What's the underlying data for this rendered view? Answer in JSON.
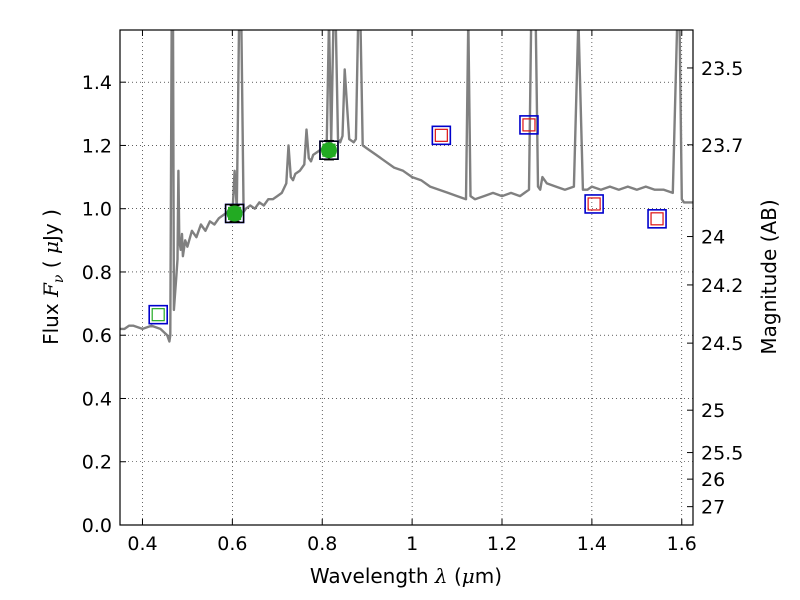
{
  "chart_data": {
    "type": "line",
    "xlabel_parts": {
      "pre": "Wavelength  ",
      "sym": "λ",
      "mid": " (",
      "mu": "μ",
      "post": "m)"
    },
    "ylabel_parts": {
      "pre": "Flux  ",
      "sym": "F",
      "sub": "ν",
      "mid": "  ( ",
      "mu": "μ",
      "post": "Jy )"
    },
    "y2label": "Magnitude (AB)",
    "xlim": [
      0.35,
      1.625
    ],
    "ylim": [
      0.0,
      1.565
    ],
    "x_ticks": [
      0.4,
      0.6,
      0.8,
      1.0,
      1.2,
      1.4,
      1.6
    ],
    "x_tick_labels": [
      "0.4",
      "0.6",
      "0.8",
      "1",
      "1.2",
      "1.4",
      "1.6"
    ],
    "y_ticks": [
      0.0,
      0.2,
      0.4,
      0.6,
      0.8,
      1.0,
      1.2,
      1.4
    ],
    "y_tick_labels": [
      "0.0",
      "0.2",
      "0.4",
      "0.6",
      "0.8",
      "1.0",
      "1.2",
      "1.4"
    ],
    "mag_ticks": [
      {
        "label": "23.5",
        "flux": 1.445
      },
      {
        "label": "23.7",
        "flux": 1.202
      },
      {
        "label": "24",
        "flux": 0.912
      },
      {
        "label": "24.2",
        "flux": 0.759
      },
      {
        "label": "24.5",
        "flux": 0.575
      },
      {
        "label": "25",
        "flux": 0.363
      },
      {
        "label": "25.5",
        "flux": 0.229
      },
      {
        "label": "26",
        "flux": 0.145
      },
      {
        "label": "27",
        "flux": 0.058
      }
    ],
    "grid": true,
    "colors": {
      "template": "#808080",
      "model_box": "#0000cc",
      "obs_box": "#000000",
      "optical_marker": "#22aa22",
      "ir_marker": "#dd1111",
      "errorbar": "#000000"
    },
    "template_spectrum": {
      "x": [
        0.35,
        0.36,
        0.37,
        0.38,
        0.4,
        0.42,
        0.44,
        0.455,
        0.46,
        0.462,
        0.465,
        0.468,
        0.47,
        0.472,
        0.475,
        0.478,
        0.48,
        0.482,
        0.485,
        0.488,
        0.49,
        0.495,
        0.5,
        0.51,
        0.52,
        0.53,
        0.54,
        0.55,
        0.56,
        0.57,
        0.58,
        0.59,
        0.6,
        0.605,
        0.61,
        0.615,
        0.62,
        0.625,
        0.63,
        0.64,
        0.65,
        0.66,
        0.67,
        0.68,
        0.69,
        0.7,
        0.71,
        0.72,
        0.725,
        0.73,
        0.735,
        0.74,
        0.75,
        0.76,
        0.765,
        0.77,
        0.775,
        0.78,
        0.79,
        0.8,
        0.81,
        0.815,
        0.82,
        0.825,
        0.83,
        0.835,
        0.84,
        0.845,
        0.85,
        0.86,
        0.87,
        0.875,
        0.88,
        0.885,
        0.89,
        0.9,
        0.92,
        0.94,
        0.96,
        0.98,
        1.0,
        1.02,
        1.04,
        1.06,
        1.08,
        1.1,
        1.12,
        1.125,
        1.13,
        1.14,
        1.16,
        1.18,
        1.2,
        1.22,
        1.24,
        1.25,
        1.26,
        1.265,
        1.27,
        1.275,
        1.28,
        1.285,
        1.29,
        1.3,
        1.32,
        1.34,
        1.36,
        1.37,
        1.38,
        1.39,
        1.4,
        1.42,
        1.44,
        1.46,
        1.48,
        1.5,
        1.52,
        1.54,
        1.56,
        1.58,
        1.59,
        1.595,
        1.6,
        1.605,
        1.61,
        1.625
      ],
      "y": [
        0.62,
        0.62,
        0.63,
        0.63,
        0.62,
        0.63,
        0.62,
        0.6,
        0.58,
        0.6,
        1.6,
        1.6,
        0.68,
        0.72,
        0.78,
        0.84,
        1.12,
        0.9,
        0.87,
        0.92,
        0.85,
        0.9,
        0.88,
        0.93,
        0.91,
        0.95,
        0.93,
        0.96,
        0.95,
        0.97,
        0.98,
        0.99,
        0.98,
        1.12,
        1.0,
        1.6,
        1.6,
        0.99,
        1.0,
        1.01,
        1.0,
        1.02,
        1.01,
        1.03,
        1.03,
        1.04,
        1.05,
        1.08,
        1.2,
        1.1,
        1.09,
        1.11,
        1.12,
        1.14,
        1.25,
        1.16,
        1.15,
        1.17,
        1.18,
        1.19,
        1.2,
        1.6,
        1.21,
        1.6,
        1.6,
        1.22,
        1.21,
        1.23,
        1.44,
        1.22,
        1.21,
        1.22,
        1.6,
        1.6,
        1.2,
        1.19,
        1.17,
        1.15,
        1.13,
        1.12,
        1.1,
        1.09,
        1.07,
        1.06,
        1.05,
        1.04,
        1.03,
        1.6,
        1.04,
        1.03,
        1.04,
        1.05,
        1.04,
        1.05,
        1.04,
        1.05,
        1.06,
        1.6,
        1.6,
        1.6,
        1.07,
        1.06,
        1.1,
        1.08,
        1.07,
        1.06,
        1.07,
        1.6,
        1.06,
        1.06,
        1.07,
        1.06,
        1.07,
        1.06,
        1.07,
        1.06,
        1.07,
        1.06,
        1.06,
        1.05,
        1.6,
        1.6,
        1.03,
        1.02,
        1.02,
        1.02
      ]
    },
    "photometry": [
      {
        "x": 0.435,
        "y": 0.665,
        "source": "model",
        "band": "optical"
      },
      {
        "x": 0.435,
        "y": 0.665,
        "source": "observed",
        "band": "optical",
        "err": 0.0
      },
      {
        "x": 0.605,
        "y": 0.985,
        "source": "model",
        "band": "optical"
      },
      {
        "x": 0.605,
        "y": 0.985,
        "source": "observed",
        "band": "optical",
        "err": 0.025
      },
      {
        "x": 0.815,
        "y": 1.185,
        "source": "model",
        "band": "optical"
      },
      {
        "x": 0.815,
        "y": 1.185,
        "source": "observed",
        "band": "optical",
        "err": 0.03
      },
      {
        "x": 1.065,
        "y": 1.232,
        "source": "model",
        "band": "ir"
      },
      {
        "x": 1.26,
        "y": 1.265,
        "source": "model",
        "band": "ir"
      },
      {
        "x": 1.405,
        "y": 1.015,
        "source": "model",
        "band": "ir"
      },
      {
        "x": 1.545,
        "y": 0.968,
        "source": "model",
        "band": "ir"
      }
    ]
  }
}
